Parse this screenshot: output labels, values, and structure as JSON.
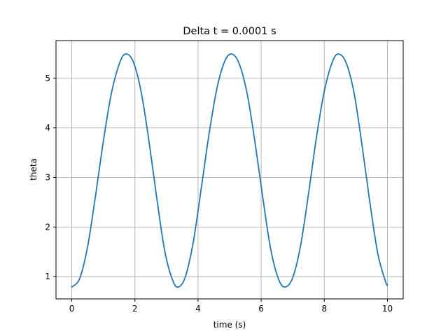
{
  "chart_data": {
    "type": "line",
    "title": "Delta t = 0.0001 s",
    "xlabel": "time (s)",
    "ylabel": "theta",
    "xlim": [
      -0.5,
      10.5
    ],
    "ylim": [
      0.55,
      5.76
    ],
    "xticks": [
      0,
      2,
      4,
      6,
      8,
      10
    ],
    "xtick_labels": [
      "0",
      "2",
      "4",
      "6",
      "8",
      "10"
    ],
    "yticks": [
      1,
      2,
      3,
      4,
      5
    ],
    "ytick_labels": [
      "1",
      "2",
      "3",
      "4",
      "5"
    ],
    "grid": true,
    "line_color": "#1f77b4",
    "series": [
      {
        "x": [
          0,
          0.25,
          0.5,
          0.75,
          1.0,
          1.25,
          1.5,
          1.7,
          1.95,
          2.2,
          2.45,
          2.7,
          2.95,
          3.2,
          3.38,
          3.6,
          3.85,
          4.1,
          4.35,
          4.6,
          4.85,
          5.07,
          5.3,
          5.55,
          5.8,
          6.05,
          6.3,
          6.55,
          6.76,
          7.0,
          7.25,
          7.5,
          7.75,
          8.0,
          8.25,
          8.45,
          8.7,
          8.95,
          9.2,
          9.45,
          9.7,
          9.95,
          10.0
        ],
        "y": [
          0.79,
          0.96,
          1.6,
          2.62,
          3.73,
          4.68,
          5.28,
          5.49,
          5.33,
          4.72,
          3.71,
          2.55,
          1.5,
          0.92,
          0.79,
          1.0,
          1.7,
          2.77,
          3.88,
          4.8,
          5.35,
          5.49,
          5.3,
          4.71,
          3.73,
          2.6,
          1.56,
          0.95,
          0.79,
          0.98,
          1.63,
          2.67,
          3.8,
          4.74,
          5.32,
          5.49,
          5.3,
          4.68,
          3.63,
          2.47,
          1.45,
          0.88,
          0.84
        ]
      }
    ]
  }
}
